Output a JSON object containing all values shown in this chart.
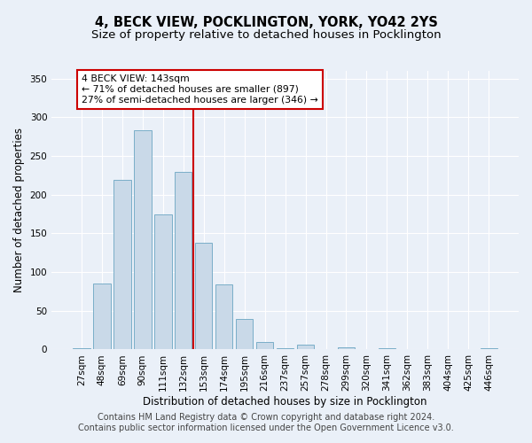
{
  "title": "4, BECK VIEW, POCKLINGTON, YORK, YO42 2YS",
  "subtitle": "Size of property relative to detached houses in Pocklington",
  "xlabel": "Distribution of detached houses by size in Pocklington",
  "ylabel": "Number of detached properties",
  "categories": [
    "27sqm",
    "48sqm",
    "69sqm",
    "90sqm",
    "111sqm",
    "132sqm",
    "153sqm",
    "174sqm",
    "195sqm",
    "216sqm",
    "237sqm",
    "257sqm",
    "278sqm",
    "299sqm",
    "320sqm",
    "341sqm",
    "362sqm",
    "383sqm",
    "404sqm",
    "425sqm",
    "446sqm"
  ],
  "values": [
    2,
    85,
    219,
    283,
    175,
    230,
    138,
    84,
    40,
    10,
    2,
    6,
    1,
    3,
    1,
    2,
    1,
    0,
    1,
    0,
    2
  ],
  "bar_color": "#c9d9e8",
  "bar_edge_color": "#7aaec8",
  "vline_x": 5.5,
  "vline_color": "#cc0000",
  "annotation_line1": "4 BECK VIEW: 143sqm",
  "annotation_line2": "← 71% of detached houses are smaller (897)",
  "annotation_line3": "27% of semi-detached houses are larger (346) →",
  "annotation_box_color": "#ffffff",
  "annotation_box_edge": "#cc0000",
  "footer_line1": "Contains HM Land Registry data © Crown copyright and database right 2024.",
  "footer_line2": "Contains public sector information licensed under the Open Government Licence v3.0.",
  "ylim": [
    0,
    360
  ],
  "yticks": [
    0,
    50,
    100,
    150,
    200,
    250,
    300,
    350
  ],
  "bg_color": "#eaf0f8",
  "plot_bg_color": "#eaf0f8",
  "grid_color": "#ffffff",
  "title_fontsize": 10.5,
  "subtitle_fontsize": 9.5,
  "axis_label_fontsize": 8.5,
  "tick_fontsize": 7.5,
  "footer_fontsize": 7.0
}
